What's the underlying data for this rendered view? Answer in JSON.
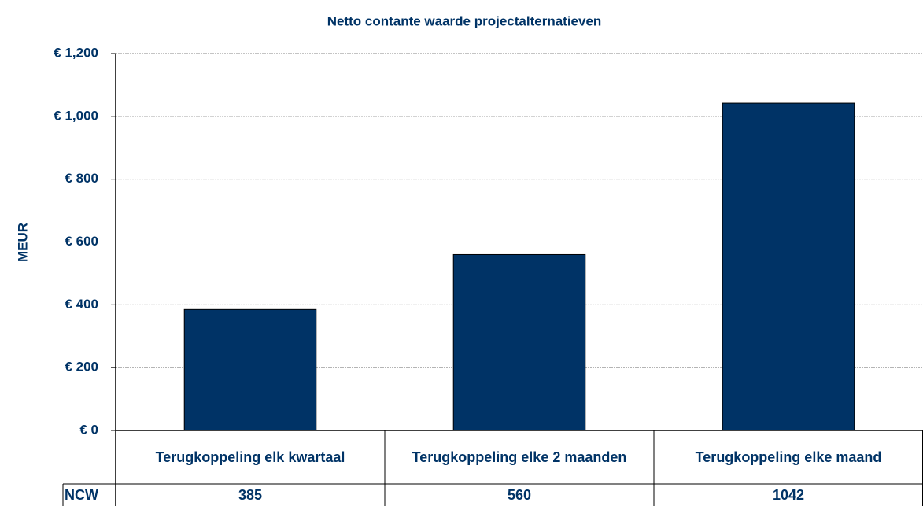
{
  "chart_data": {
    "type": "bar",
    "title": "Netto contante waarde projectalternatieven",
    "y_label": "MEUR",
    "categories": [
      "Terugkoppeling elk kwartaal",
      "Terugkoppeling elke 2 maanden",
      "Terugkoppeling elke maand"
    ],
    "series": [
      {
        "name": "NCW",
        "color": "#003366",
        "values": [
          385,
          560,
          1042
        ]
      }
    ],
    "ylim": [
      0,
      1200
    ],
    "yticks": [
      {
        "value": 0,
        "label": "€ 0"
      },
      {
        "value": 200,
        "label": "€ 200"
      },
      {
        "value": 400,
        "label": "€ 400"
      },
      {
        "value": 600,
        "label": "€ 600"
      },
      {
        "value": 800,
        "label": "€ 800"
      },
      {
        "value": 1000,
        "label": "€ 1,000"
      },
      {
        "value": 1200,
        "label": "€ 1,200"
      }
    ],
    "grid": true
  }
}
